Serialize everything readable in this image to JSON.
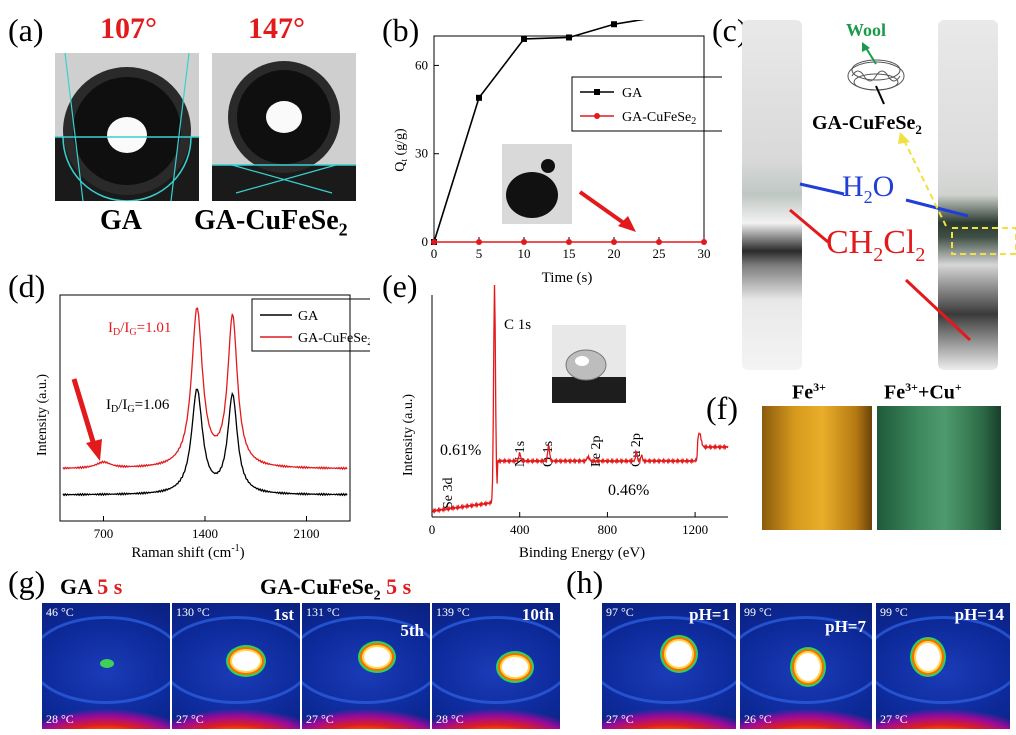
{
  "panels": {
    "a": {
      "label": "(a)",
      "angles": [
        "107°",
        "147°"
      ],
      "samples": [
        "GA",
        "GA-CuFeSe",
        "2"
      ]
    },
    "b": {
      "label": "(b)",
      "legend": [
        "GA",
        "GA-CuFeSe",
        "2"
      ]
    },
    "c": {
      "label": "(c)",
      "wool": "Wool",
      "sample": "GA-CuFeSe",
      "sample_sub": "2",
      "water": "H",
      "water_sub": "2",
      "water_tail": "O",
      "solvent_parts": [
        "CH",
        "2",
        "Cl",
        "2"
      ]
    },
    "d": {
      "label": "(d)",
      "legend": [
        "GA",
        "GA-CuFeSe",
        "2"
      ],
      "ratio_red": [
        "I",
        "D",
        "/I",
        "G",
        "=1.01"
      ],
      "ratio_black": [
        "I",
        "D",
        "/I",
        "G",
        "=1.06"
      ]
    },
    "e": {
      "label": "(e)",
      "peaks": [
        "C 1s",
        "N 1s",
        "O 1s",
        "Fe 2p",
        "Cu 2p",
        "Se 3d"
      ],
      "pct_se": "0.61%",
      "pct_cu": "0.46%"
    },
    "f": {
      "label": "(f)",
      "vials": [
        [
          "Fe",
          "3+"
        ],
        [
          "Fe",
          "3+",
          "+Cu",
          "+"
        ]
      ]
    },
    "g": {
      "label": "(g)",
      "head_ga": "GA",
      "head_time": "5 s",
      "head_cufese": "GA-CuFeSe",
      "head_sub": "2",
      "frames": [
        {
          "top": "46 °C",
          "bottom": "28 °C",
          "tag": ""
        },
        {
          "top": "130 °C",
          "bottom": "27 °C",
          "tag": "1st"
        },
        {
          "top": "131 °C",
          "bottom": "27 °C",
          "tag": "5th"
        },
        {
          "top": "139 °C",
          "bottom": "28 °C",
          "tag": "10th"
        }
      ]
    },
    "h": {
      "label": "(h)",
      "frames": [
        {
          "top": "97 °C",
          "bottom": "27 °C",
          "tag": "pH=1"
        },
        {
          "top": "99 °C",
          "bottom": "26 °C",
          "tag": "pH=7"
        },
        {
          "top": "99 °C",
          "bottom": "27 °C",
          "tag": "pH=14"
        }
      ]
    }
  },
  "chart_data": [
    {
      "type": "line",
      "panel": "b",
      "xlabel": "Time (s)",
      "ylabel": "Q",
      "ylabel_sub": "t",
      "ylabel_tail": " (g/g)",
      "x": [
        0,
        5,
        10,
        15,
        20,
        25,
        30
      ],
      "xlim": [
        0,
        30
      ],
      "ylim": [
        0,
        70
      ],
      "xticks": [
        "0",
        "5",
        "10",
        "15",
        "20",
        "25",
        "30"
      ],
      "yticks": [
        "0",
        "30",
        "60"
      ],
      "series": [
        {
          "name": "GA",
          "color": "#000000",
          "values": [
            0,
            49,
            69,
            69.5,
            74,
            76.5,
            76.5
          ]
        },
        {
          "name": "GA-CuFeSe2",
          "color": "#e31a1c",
          "values": [
            0,
            0,
            0,
            0,
            0,
            0,
            0
          ]
        }
      ]
    },
    {
      "type": "line",
      "panel": "d",
      "xlabel": "Raman shift (cm",
      "xlabel_sup": "-1",
      "xlabel_tail": ")",
      "ylabel": "Intensity (a.u.)",
      "xlim": [
        400,
        2400
      ],
      "xticks": [
        "700",
        "1400",
        "2100"
      ],
      "series": [
        {
          "name": "GA",
          "color": "#000000"
        },
        {
          "name": "GA-CuFeSe2",
          "color": "#e31a1c"
        }
      ]
    },
    {
      "type": "line",
      "panel": "e",
      "xlabel": "Binding Energy (eV)",
      "ylabel": "Intensity (a.u.)",
      "xlim": [
        0,
        1350
      ],
      "xticks": [
        "0",
        "400",
        "800",
        "1200"
      ]
    }
  ]
}
